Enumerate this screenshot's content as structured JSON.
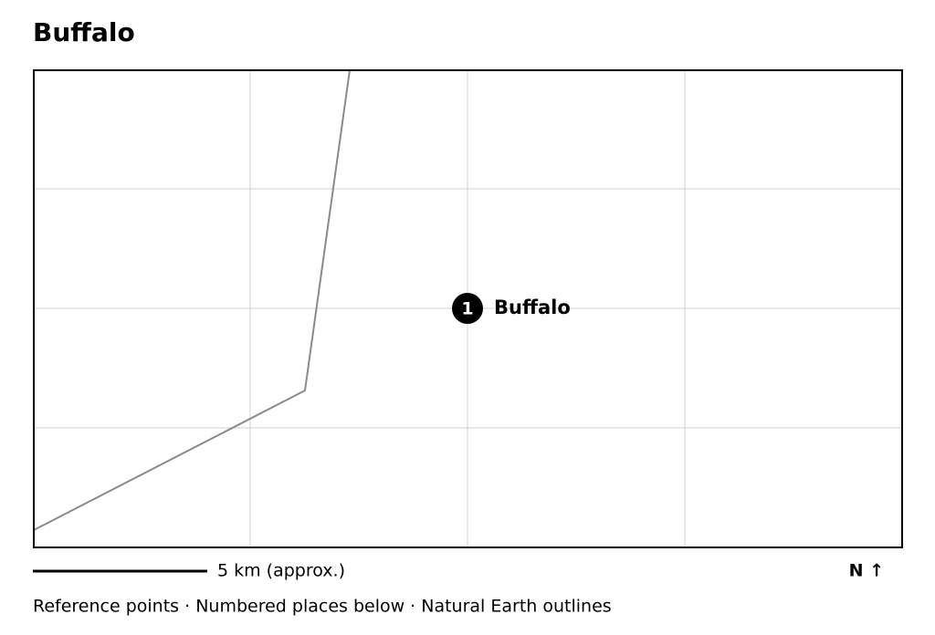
{
  "header": {
    "title": "Buffalo"
  },
  "map": {
    "places": [
      {
        "number": "1",
        "label": "Buffalo"
      }
    ]
  },
  "footer": {
    "scale": "5 km (approx.)",
    "north": "N ↑",
    "note": "Reference points · Numbered places below · Natural Earth outlines"
  }
}
